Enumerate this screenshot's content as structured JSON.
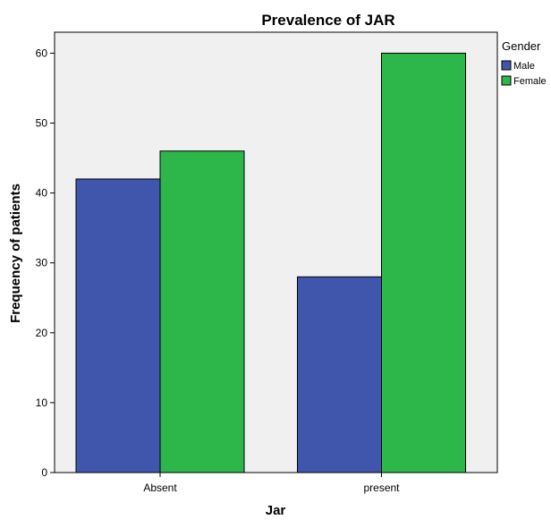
{
  "chart_data": {
    "type": "bar",
    "title": "Prevalence of JAR",
    "xlabel": "Jar",
    "ylabel": "Frequency of patients",
    "categories": [
      "Absent",
      "present"
    ],
    "series": [
      {
        "name": "Male",
        "values": [
          42,
          28
        ],
        "color": "#3f56ac"
      },
      {
        "name": "Female",
        "values": [
          46,
          60
        ],
        "color": "#2db64a"
      }
    ],
    "ylim": [
      0,
      63
    ],
    "yticks": [
      0,
      10,
      20,
      30,
      40,
      50,
      60
    ],
    "legend": {
      "title": "Gender",
      "position": "top-right"
    },
    "grid": false,
    "plot_background": "#f0f0f0"
  }
}
